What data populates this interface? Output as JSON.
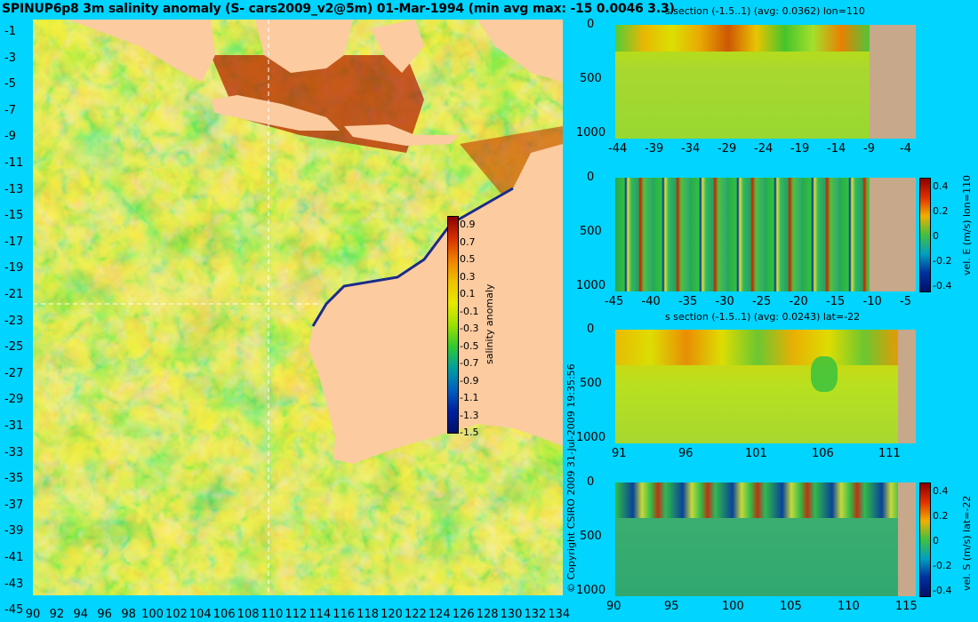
{
  "title": "SPINUP6p8 3m salinity anomaly (S- cars2009_v2@5m) 01-Mar-1994 (min avg max: -15 0.0046 3.3)",
  "map": {
    "lat_ticks": [
      "-1",
      "-3",
      "-5",
      "-7",
      "-9",
      "-11",
      "-13",
      "-15",
      "-17",
      "-19",
      "-21",
      "-23",
      "-25",
      "-27",
      "-29",
      "-31",
      "-33",
      "-35",
      "-37",
      "-39",
      "-41",
      "-43",
      "-45"
    ],
    "lon_ticks": [
      "90",
      "92",
      "94",
      "96",
      "98",
      "100",
      "102",
      "104",
      "106",
      "108",
      "110",
      "112",
      "114",
      "116",
      "118",
      "120",
      "122",
      "124",
      "126",
      "128",
      "130",
      "132",
      "134"
    ],
    "section_lon": 110,
    "section_lat": -22,
    "colorbar": {
      "label": "salinity anomaly",
      "ticks": [
        "0.9",
        "0.7",
        "0.5",
        "0.3",
        "0.1",
        "-0.1",
        "-0.3",
        "-0.5",
        "-0.7",
        "-0.9",
        "-1.1",
        "-1.3",
        "-1.5"
      ]
    }
  },
  "panels": [
    {
      "title": "s section (-1.5..1) (avg: 0.0362) lon=110",
      "y_ticks": [
        "0",
        "500",
        "1000"
      ],
      "x_ticks": [
        "-44",
        "-39",
        "-34",
        "-29",
        "-24",
        "-19",
        "-14",
        "-9",
        "-4"
      ]
    },
    {
      "title": "",
      "y_ticks": [
        "0",
        "500",
        "1000"
      ],
      "x_ticks": [
        "-45",
        "-40",
        "-35",
        "-30",
        "-25",
        "-20",
        "-15",
        "-10",
        "-5"
      ],
      "colorbar_label": "vel. E (m/s) lon=110",
      "colorbar_ticks": [
        "0.4",
        "0.2",
        "0",
        "-0.2",
        "-0.4"
      ]
    },
    {
      "title": "s section (-1.5..1) (avg: 0.0243) lat=-22",
      "y_ticks": [
        "0",
        "500",
        "1000"
      ],
      "x_ticks": [
        "91",
        "96",
        "101",
        "106",
        "111"
      ]
    },
    {
      "title": "",
      "y_ticks": [
        "0",
        "500",
        "1000"
      ],
      "x_ticks": [
        "90",
        "95",
        "100",
        "105",
        "110",
        "115"
      ],
      "colorbar_label": "vel. S (m/s) lat=-22",
      "colorbar_ticks": [
        "0.4",
        "0.2",
        "0",
        "-0.2",
        "-0.4"
      ]
    }
  ],
  "copyright": "© Copyright CSIRO 2009  31-Jul-2009 19:35:56",
  "colors": {
    "background": "#00d4ff",
    "land": "#fccba0",
    "section_land": "#c8a88a"
  }
}
